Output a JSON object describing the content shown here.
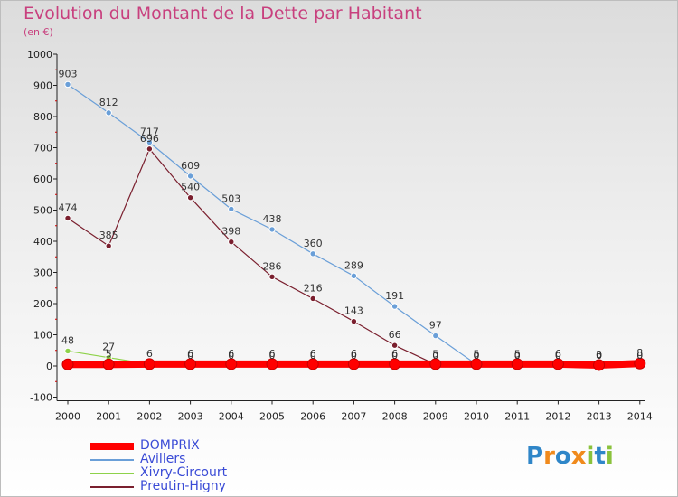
{
  "chart_data": {
    "type": "line",
    "title": "Evolution du Montant de la Dette par Habitant",
    "subtitle": "(en €)",
    "ylim": [
      -100,
      1000
    ],
    "yticks": [
      -100,
      0,
      100,
      200,
      300,
      400,
      500,
      600,
      700,
      800,
      900,
      1000
    ],
    "x": [
      "2000",
      "2001",
      "2002",
      "2003",
      "2004",
      "2005",
      "2006",
      "2007",
      "2008",
      "2009",
      "2010",
      "2011",
      "2012",
      "2013",
      "2014"
    ],
    "grid": false,
    "legend_position": "bottom-left",
    "series": [
      {
        "name": "DOMPRIX",
        "color": "#ff0000",
        "values": [
          5,
          5,
          6,
          6,
          6,
          6,
          6,
          6,
          6,
          6,
          6,
          6,
          6,
          3,
          8
        ],
        "labels": [
          "",
          "5",
          "6",
          "6",
          "6",
          "6",
          "6",
          "6",
          "6",
          "",
          "",
          "",
          "",
          "",
          ""
        ]
      },
      {
        "name": "Avillers",
        "color": "#6a9fd8",
        "values": [
          903,
          812,
          717,
          609,
          503,
          438,
          360,
          289,
          191,
          97,
          5,
          5,
          6,
          3,
          8
        ],
        "labels": [
          "903",
          "812",
          "717",
          "609",
          "503",
          "438",
          "360",
          "289",
          "191",
          "97",
          "5",
          "5",
          "6",
          "3",
          "8"
        ]
      },
      {
        "name": "Xivry-Circourt",
        "color": "#8ed24a",
        "values": [
          48,
          27,
          6,
          0,
          0,
          0,
          0,
          0,
          0,
          0,
          0,
          0,
          0,
          0,
          0
        ],
        "labels": [
          "48",
          "27",
          "",
          "0",
          "0",
          "0",
          "0",
          "0",
          "0",
          "0",
          "0",
          "0",
          "0",
          "0",
          "0"
        ]
      },
      {
        "name": "Preutin-Higny",
        "color": "#7a1f2e",
        "values": [
          474,
          385,
          696,
          540,
          398,
          286,
          216,
          143,
          66,
          5,
          0,
          0,
          0,
          0,
          0
        ],
        "labels": [
          "474",
          "385",
          "696",
          "540",
          "398",
          "286",
          "216",
          "143",
          "66",
          "5",
          "0",
          "0",
          "0",
          "0",
          "0"
        ]
      }
    ]
  },
  "legend": {
    "items": [
      "DOMPRIX",
      "Avillers",
      "Xivry-Circourt",
      "Preutin-Higny"
    ]
  },
  "logo": {
    "text": "Proxiti",
    "letters": [
      "P",
      "r",
      "o",
      "x",
      "i",
      "t",
      "i"
    ],
    "colors": [
      "#2f86c8",
      "#f08a1c",
      "#2f86c8",
      "#f08a1c",
      "#8ac23c",
      "#2f86c8",
      "#8ac23c"
    ]
  }
}
